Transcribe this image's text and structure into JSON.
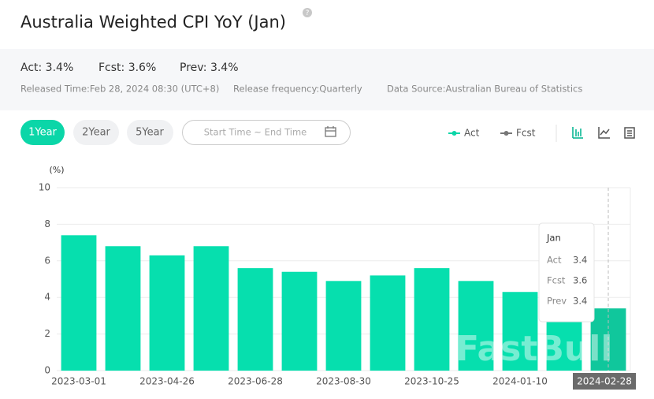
{
  "header": {
    "title": "Australia Weighted CPI YoY (Jan)",
    "stats": [
      "Act: 3.4%",
      "Fcst: 3.6%",
      "Prev: 3.4%"
    ],
    "meta": [
      "Released Time:Feb 28, 2024 08:30 (UTC+8)",
      "Release frequency:Quarterly",
      "Data Source:Australian Bureau of Statistics"
    ]
  },
  "controls": {
    "ranges": [
      "1Year",
      "2Year",
      "5Year"
    ],
    "date_placeholder": "Start Time ~ End Time",
    "legend": [
      "Act",
      "Fcst"
    ]
  },
  "chart_data": {
    "type": "bar",
    "y_label": "(%)",
    "categories": [
      "2023-03-01",
      null,
      "2023-04-26",
      null,
      "2023-06-28",
      null,
      "2023-08-30",
      null,
      "2023-10-25",
      null,
      "2024-01-10",
      null,
      "2024-02-28"
    ],
    "values": [
      7.4,
      6.8,
      6.3,
      6.8,
      5.6,
      5.4,
      4.9,
      5.2,
      5.6,
      4.9,
      4.3,
      3.4,
      3.4
    ],
    "color": "#06dfae",
    "active_index": 12,
    "active_color": "#10c79c",
    "ylim": [
      0,
      10
    ],
    "yticks": [
      0,
      2,
      4,
      6,
      8,
      10
    ],
    "grid": true
  },
  "tooltip": {
    "title": "Jan",
    "rows": [
      [
        "Act",
        "3.4"
      ],
      [
        "Fcst",
        "3.6"
      ],
      [
        "Prev",
        "3.4"
      ]
    ]
  },
  "watermark": "FastBull"
}
